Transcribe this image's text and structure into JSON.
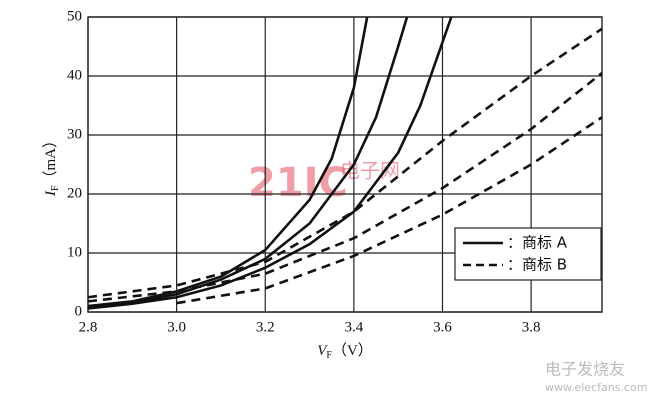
{
  "chart_data": {
    "type": "line",
    "xlabel": {
      "main": "V",
      "sub": "F",
      "unit": "（V）"
    },
    "ylabel": {
      "main": "I",
      "sub": "F",
      "unit": "（mA）"
    },
    "xlim": [
      2.8,
      3.96
    ],
    "xticks": [
      {
        "value": 2.8,
        "label": "2.8"
      },
      {
        "value": 3.0,
        "label": "3.0"
      },
      {
        "value": 3.2,
        "label": "3.2"
      },
      {
        "value": 3.4,
        "label": "3.4"
      },
      {
        "value": 3.6,
        "label": "3.6"
      },
      {
        "value": 3.8,
        "label": "3.8"
      }
    ],
    "ylim": [
      0,
      50
    ],
    "yticks": [
      0,
      10,
      20,
      30,
      40,
      50
    ],
    "grid": true,
    "legend": [
      {
        "name": "：商标 A",
        "style": "solid"
      },
      {
        "name": "：商标 B",
        "style": "dashed"
      }
    ],
    "legend_position": "lower-right",
    "series": [
      {
        "style": "solid",
        "color": "#111111",
        "x": [
          2.8,
          2.9,
          3.0,
          3.1,
          3.2,
          3.3,
          3.35,
          3.4,
          3.43
        ],
        "values": [
          1,
          1.8,
          3.5,
          6,
          10.5,
          19,
          26,
          38,
          50
        ]
      },
      {
        "style": "solid",
        "color": "#111111",
        "x": [
          2.8,
          2.9,
          3.0,
          3.1,
          3.2,
          3.3,
          3.4,
          3.45,
          3.5,
          3.52
        ],
        "values": [
          0.8,
          1.6,
          3,
          5.5,
          9,
          15,
          25,
          33,
          45,
          50
        ]
      },
      {
        "style": "solid",
        "color": "#111111",
        "x": [
          2.8,
          2.9,
          3.0,
          3.1,
          3.2,
          3.3,
          3.4,
          3.5,
          3.55,
          3.62
        ],
        "values": [
          0.6,
          1.4,
          2.5,
          4.5,
          7.5,
          11.5,
          17,
          27,
          35,
          50
        ]
      },
      {
        "style": "dashed",
        "color": "#111111",
        "x": [
          2.8,
          3.0,
          3.2,
          3.4,
          3.6,
          3.8,
          3.96
        ],
        "values": [
          2.5,
          4.5,
          8.5,
          17,
          29,
          40,
          48
        ]
      },
      {
        "style": "dashed",
        "color": "#111111",
        "x": [
          2.8,
          3.0,
          3.2,
          3.4,
          3.6,
          3.8,
          3.96
        ],
        "values": [
          1.8,
          3.5,
          6.5,
          12.5,
          21,
          31,
          40.5
        ]
      },
      {
        "style": "dashed",
        "color": "#111111",
        "x": [
          3.0,
          3.2,
          3.4,
          3.6,
          3.8,
          3.96
        ],
        "values": [
          1.5,
          4,
          9.5,
          16.5,
          25,
          33
        ]
      }
    ],
    "watermarks": [
      "21IC",
      "电子网",
      "电子发烧友",
      "www.elecfans.com"
    ]
  }
}
